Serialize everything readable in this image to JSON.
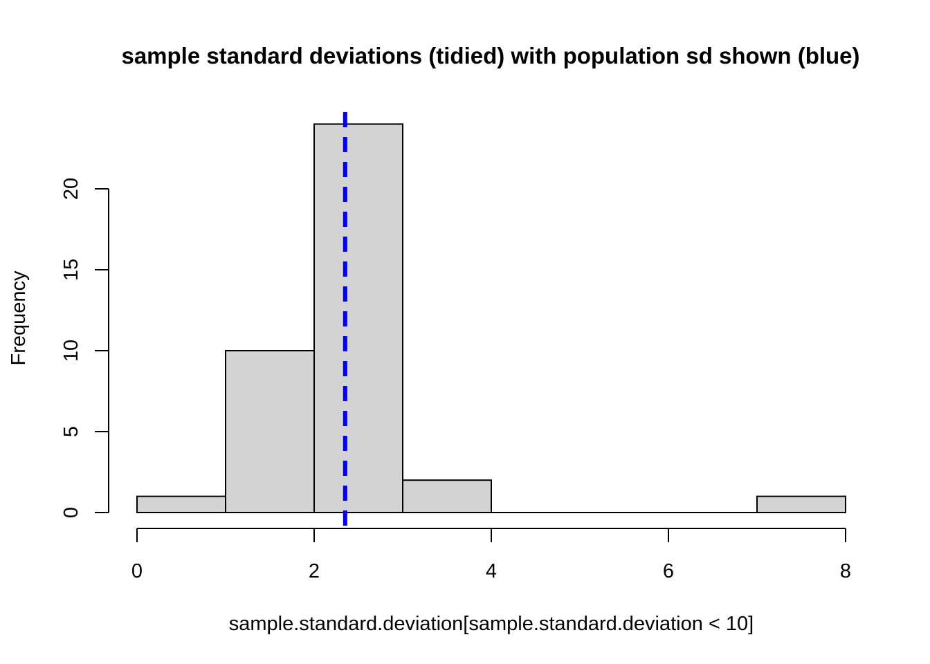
{
  "chart_data": {
    "type": "bar",
    "title": "sample standard deviations (tidied) with population sd shown (blue)",
    "xlabel": "sample.standard.deviation[sample.standard.deviation < 10]",
    "ylabel": "Frequency",
    "bins": [
      {
        "from": 0,
        "to": 1,
        "count": 1
      },
      {
        "from": 1,
        "to": 2,
        "count": 10
      },
      {
        "from": 2,
        "to": 3,
        "count": 24
      },
      {
        "from": 3,
        "to": 4,
        "count": 2
      },
      {
        "from": 4,
        "to": 5,
        "count": 0
      },
      {
        "from": 5,
        "to": 6,
        "count": 0
      },
      {
        "from": 6,
        "to": 7,
        "count": 0
      },
      {
        "from": 7,
        "to": 8,
        "count": 1
      }
    ],
    "xlim": [
      0,
      8
    ],
    "ylim": [
      0,
      24
    ],
    "x_ticks": [
      0,
      2,
      4,
      6,
      8
    ],
    "y_ticks": [
      0,
      5,
      10,
      15,
      20
    ],
    "population_sd": 2.35,
    "reference_line_color": "#0000ff",
    "bar_color": "#d3d3d3",
    "grid": false
  }
}
